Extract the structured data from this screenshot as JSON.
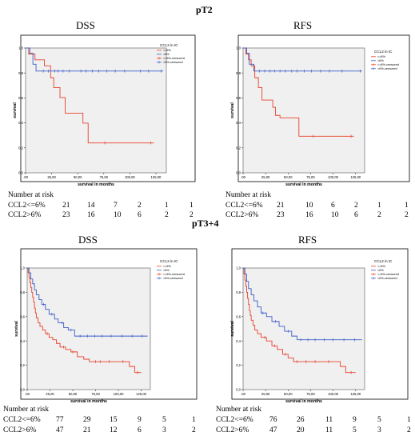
{
  "headings": {
    "top": "pT2",
    "bottom": "pT3+4"
  },
  "colors": {
    "le6": "#e8412c",
    "gt6": "#3d5ec8",
    "frame": "#000000",
    "plotbg": "#f0f0f0"
  },
  "risk": {
    "label": "Number at risk",
    "times": [
      0,
      25,
      50,
      75,
      100,
      125
    ],
    "rows": [
      "CCL2<=6%",
      "CCL2>6%"
    ]
  },
  "chart_data": [
    {
      "id": "pT2-DSS",
      "type": "line",
      "title": "DSS",
      "xlabel": "survival in months",
      "ylabel": "survival",
      "xticks": [
        ".00",
        "25,00",
        "50,00",
        "75,00",
        "100,00",
        "125,00"
      ],
      "yticks": [
        "0,0",
        "0,2",
        "0,4",
        "0,6",
        "0,8",
        "1,0"
      ],
      "xlim": [
        0,
        135
      ],
      "ylim": [
        0,
        1
      ],
      "legend": {
        "title": "CCL2 in IC",
        "entries": [
          "<=6%",
          ">6%",
          "<=6%-censored",
          ">6%-censored"
        ],
        "position": "right"
      },
      "series": [
        {
          "name": "<=6%",
          "steps": [
            [
              0,
              1.0
            ],
            [
              3,
              0.952
            ],
            [
              9,
              0.905
            ],
            [
              18,
              0.857
            ],
            [
              24,
              0.762
            ],
            [
              27,
              0.683
            ],
            [
              33,
              0.603
            ],
            [
              38,
              0.478
            ],
            [
              55,
              0.398
            ],
            [
              60,
              0.239
            ],
            [
              123,
              0.239
            ]
          ],
          "censored": [
            [
              76,
              0.239
            ],
            [
              120,
              0.239
            ]
          ]
        },
        {
          "name": ">6%",
          "steps": [
            [
              0,
              1.0
            ],
            [
              4,
              0.957
            ],
            [
              7,
              0.87
            ],
            [
              10,
              0.815
            ],
            [
              132,
              0.815
            ]
          ],
          "censored": [
            [
              17,
              0.815
            ],
            [
              22,
              0.815
            ],
            [
              28,
              0.815
            ],
            [
              31,
              0.815
            ],
            [
              36,
              0.815
            ],
            [
              42,
              0.815
            ],
            [
              53,
              0.815
            ],
            [
              58,
              0.815
            ],
            [
              64,
              0.815
            ],
            [
              70,
              0.815
            ],
            [
              78,
              0.815
            ],
            [
              86,
              0.815
            ],
            [
              95,
              0.815
            ],
            [
              110,
              0.815
            ],
            [
              118,
              0.815
            ],
            [
              130,
              0.815
            ]
          ]
        }
      ],
      "risk": [
        [
          21,
          14,
          7,
          2,
          1,
          1
        ],
        [
          23,
          16,
          10,
          6,
          2,
          2
        ]
      ]
    },
    {
      "id": "pT2-RFS",
      "type": "line",
      "title": "RFS",
      "xlabel": "survival in months",
      "ylabel": "survival",
      "xticks": [
        ".00",
        "25,00",
        "50,00",
        "75,00",
        "100,00",
        "125,00"
      ],
      "yticks": [
        "0,0",
        "0,2",
        "0,4",
        "0,6",
        "0,8",
        "1,0"
      ],
      "xlim": [
        0,
        135
      ],
      "ylim": [
        0,
        1
      ],
      "legend": {
        "title": "CCL2 in IC",
        "entries": [
          "<=6%",
          ">6%",
          "<=6%-censored",
          ">6%-censored"
        ],
        "position": "right"
      },
      "series": [
        {
          "name": "<=6%",
          "steps": [
            [
              0,
              1.0
            ],
            [
              3,
              0.952
            ],
            [
              6,
              0.905
            ],
            [
              9,
              0.857
            ],
            [
              13,
              0.762
            ],
            [
              17,
              0.683
            ],
            [
              21,
              0.583
            ],
            [
              33,
              0.525
            ],
            [
              36,
              0.46
            ],
            [
              41,
              0.44
            ],
            [
              57,
              0.44
            ],
            [
              62,
              0.293
            ],
            [
              123,
              0.293
            ]
          ],
          "censored": [
            [
              78,
              0.293
            ],
            [
              120,
              0.293
            ]
          ]
        },
        {
          "name": ">6%",
          "steps": [
            [
              0,
              1.0
            ],
            [
              4,
              0.957
            ],
            [
              7,
              0.87
            ],
            [
              12,
              0.815
            ],
            [
              132,
              0.815
            ]
          ],
          "censored": [
            [
              18,
              0.815
            ],
            [
              24,
              0.815
            ],
            [
              30,
              0.815
            ],
            [
              35,
              0.815
            ],
            [
              41,
              0.815
            ],
            [
              47,
              0.815
            ],
            [
              54,
              0.815
            ],
            [
              60,
              0.815
            ],
            [
              68,
              0.815
            ],
            [
              76,
              0.815
            ],
            [
              86,
              0.815
            ],
            [
              96,
              0.815
            ],
            [
              110,
              0.815
            ],
            [
              130,
              0.815
            ]
          ]
        }
      ],
      "risk": [
        [
          21,
          10,
          6,
          2,
          1,
          1
        ],
        [
          23,
          16,
          10,
          6,
          2,
          2
        ]
      ]
    },
    {
      "id": "pT34-DSS",
      "type": "line",
      "title": "DSS",
      "xlabel": "survival in months",
      "ylabel": "survival",
      "xticks": [
        ".00",
        "25,00",
        "50,00",
        "75,00",
        "100,00",
        "125,00"
      ],
      "yticks": [
        "0,0",
        "0,2",
        "0,4",
        "0,6",
        "0,8",
        "1,0"
      ],
      "xlim": [
        0,
        135
      ],
      "ylim": [
        0,
        1
      ],
      "legend": {
        "title": "CCL2 in IC",
        "entries": [
          "<=6%",
          ">6%",
          "<=6%-censored",
          ">6%-censored"
        ],
        "position": "top-right"
      },
      "series": [
        {
          "name": "<=6%",
          "steps": [
            [
              0,
              1.0
            ],
            [
              1,
              0.96
            ],
            [
              2,
              0.92
            ],
            [
              3,
              0.88
            ],
            [
              4,
              0.84
            ],
            [
              5,
              0.8
            ],
            [
              6,
              0.76
            ],
            [
              7,
              0.72
            ],
            [
              8,
              0.67
            ],
            [
              9,
              0.63
            ],
            [
              10,
              0.59
            ],
            [
              12,
              0.55
            ],
            [
              14,
              0.52
            ],
            [
              17,
              0.49
            ],
            [
              20,
              0.46
            ],
            [
              24,
              0.43
            ],
            [
              28,
              0.41
            ],
            [
              32,
              0.38
            ],
            [
              36,
              0.35
            ],
            [
              42,
              0.33
            ],
            [
              48,
              0.31
            ],
            [
              55,
              0.27
            ],
            [
              62,
              0.25
            ],
            [
              68,
              0.23
            ],
            [
              112,
              0.19
            ],
            [
              118,
              0.14
            ],
            [
              125,
              0.14
            ]
          ],
          "censored": [
            [
              22,
              0.46
            ],
            [
              40,
              0.35
            ],
            [
              50,
              0.31
            ],
            [
              75,
              0.23
            ],
            [
              80,
              0.23
            ],
            [
              90,
              0.23
            ],
            [
              105,
              0.23
            ],
            [
              121,
              0.14
            ]
          ]
        },
        {
          "name": ">6%",
          "steps": [
            [
              0,
              1.0
            ],
            [
              2,
              0.96
            ],
            [
              4,
              0.91
            ],
            [
              6,
              0.87
            ],
            [
              8,
              0.82
            ],
            [
              10,
              0.78
            ],
            [
              13,
              0.74
            ],
            [
              16,
              0.7
            ],
            [
              20,
              0.66
            ],
            [
              24,
              0.62
            ],
            [
              30,
              0.58
            ],
            [
              34,
              0.55
            ],
            [
              40,
              0.51
            ],
            [
              45,
              0.49
            ],
            [
              52,
              0.44
            ],
            [
              132,
              0.44
            ]
          ],
          "censored": [
            [
              18,
              0.7
            ],
            [
              27,
              0.62
            ],
            [
              38,
              0.55
            ],
            [
              48,
              0.49
            ],
            [
              58,
              0.44
            ],
            [
              66,
              0.44
            ],
            [
              74,
              0.44
            ],
            [
              82,
              0.44
            ],
            [
              92,
              0.44
            ],
            [
              104,
              0.44
            ],
            [
              115,
              0.44
            ],
            [
              126,
              0.44
            ]
          ]
        }
      ],
      "risk": [
        [
          77,
          29,
          15,
          9,
          5,
          1
        ],
        [
          47,
          21,
          12,
          6,
          3,
          2
        ]
      ]
    },
    {
      "id": "pT34-RFS",
      "type": "line",
      "title": "RFS",
      "xlabel": "survival in months",
      "ylabel": "survival",
      "xticks": [
        ".00",
        "25,00",
        "50,00",
        "75,00",
        "100,00",
        "125,00"
      ],
      "yticks": [
        "0,0",
        "0,2",
        "0,4",
        "0,6",
        "0,8",
        "1,0"
      ],
      "xlim": [
        0,
        135
      ],
      "ylim": [
        0,
        1
      ],
      "legend": {
        "title": "CCL2 in IC",
        "entries": [
          "<=6%",
          ">6%",
          "<=6%-censored",
          ">6%-censored"
        ],
        "position": "top-right"
      },
      "series": [
        {
          "name": "<=6%",
          "steps": [
            [
              0,
              1.0
            ],
            [
              1,
              0.95
            ],
            [
              2,
              0.9
            ],
            [
              3,
              0.85
            ],
            [
              4,
              0.8
            ],
            [
              5,
              0.75
            ],
            [
              6,
              0.7
            ],
            [
              7,
              0.65
            ],
            [
              8,
              0.61
            ],
            [
              9,
              0.57
            ],
            [
              11,
              0.53
            ],
            [
              13,
              0.49
            ],
            [
              16,
              0.46
            ],
            [
              20,
              0.43
            ],
            [
              26,
              0.4
            ],
            [
              32,
              0.36
            ],
            [
              38,
              0.33
            ],
            [
              44,
              0.29
            ],
            [
              50,
              0.26
            ],
            [
              56,
              0.23
            ],
            [
              108,
              0.19
            ],
            [
              114,
              0.14
            ],
            [
              125,
              0.14
            ]
          ],
          "censored": [
            [
              24,
              0.43
            ],
            [
              35,
              0.36
            ],
            [
              47,
              0.29
            ],
            [
              60,
              0.23
            ],
            [
              70,
              0.23
            ],
            [
              80,
              0.23
            ],
            [
              95,
              0.23
            ],
            [
              120,
              0.14
            ]
          ]
        },
        {
          "name": ">6%",
          "steps": [
            [
              0,
              1.0
            ],
            [
              2,
              0.95
            ],
            [
              4,
              0.89
            ],
            [
              6,
              0.83
            ],
            [
              9,
              0.78
            ],
            [
              12,
              0.73
            ],
            [
              16,
              0.68
            ],
            [
              20,
              0.63
            ],
            [
              26,
              0.6
            ],
            [
              32,
              0.56
            ],
            [
              40,
              0.52
            ],
            [
              46,
              0.48
            ],
            [
              54,
              0.44
            ],
            [
              60,
              0.41
            ],
            [
              132,
              0.41
            ]
          ],
          "censored": [
            [
              22,
              0.63
            ],
            [
              36,
              0.56
            ],
            [
              50,
              0.48
            ],
            [
              64,
              0.41
            ],
            [
              72,
              0.41
            ],
            [
              80,
              0.41
            ],
            [
              90,
              0.41
            ],
            [
              100,
              0.41
            ],
            [
              112,
              0.41
            ],
            [
              124,
              0.41
            ]
          ]
        }
      ],
      "risk": [
        [
          76,
          26,
          11,
          9,
          5,
          1
        ],
        [
          47,
          20,
          11,
          5,
          3,
          2
        ]
      ]
    }
  ]
}
